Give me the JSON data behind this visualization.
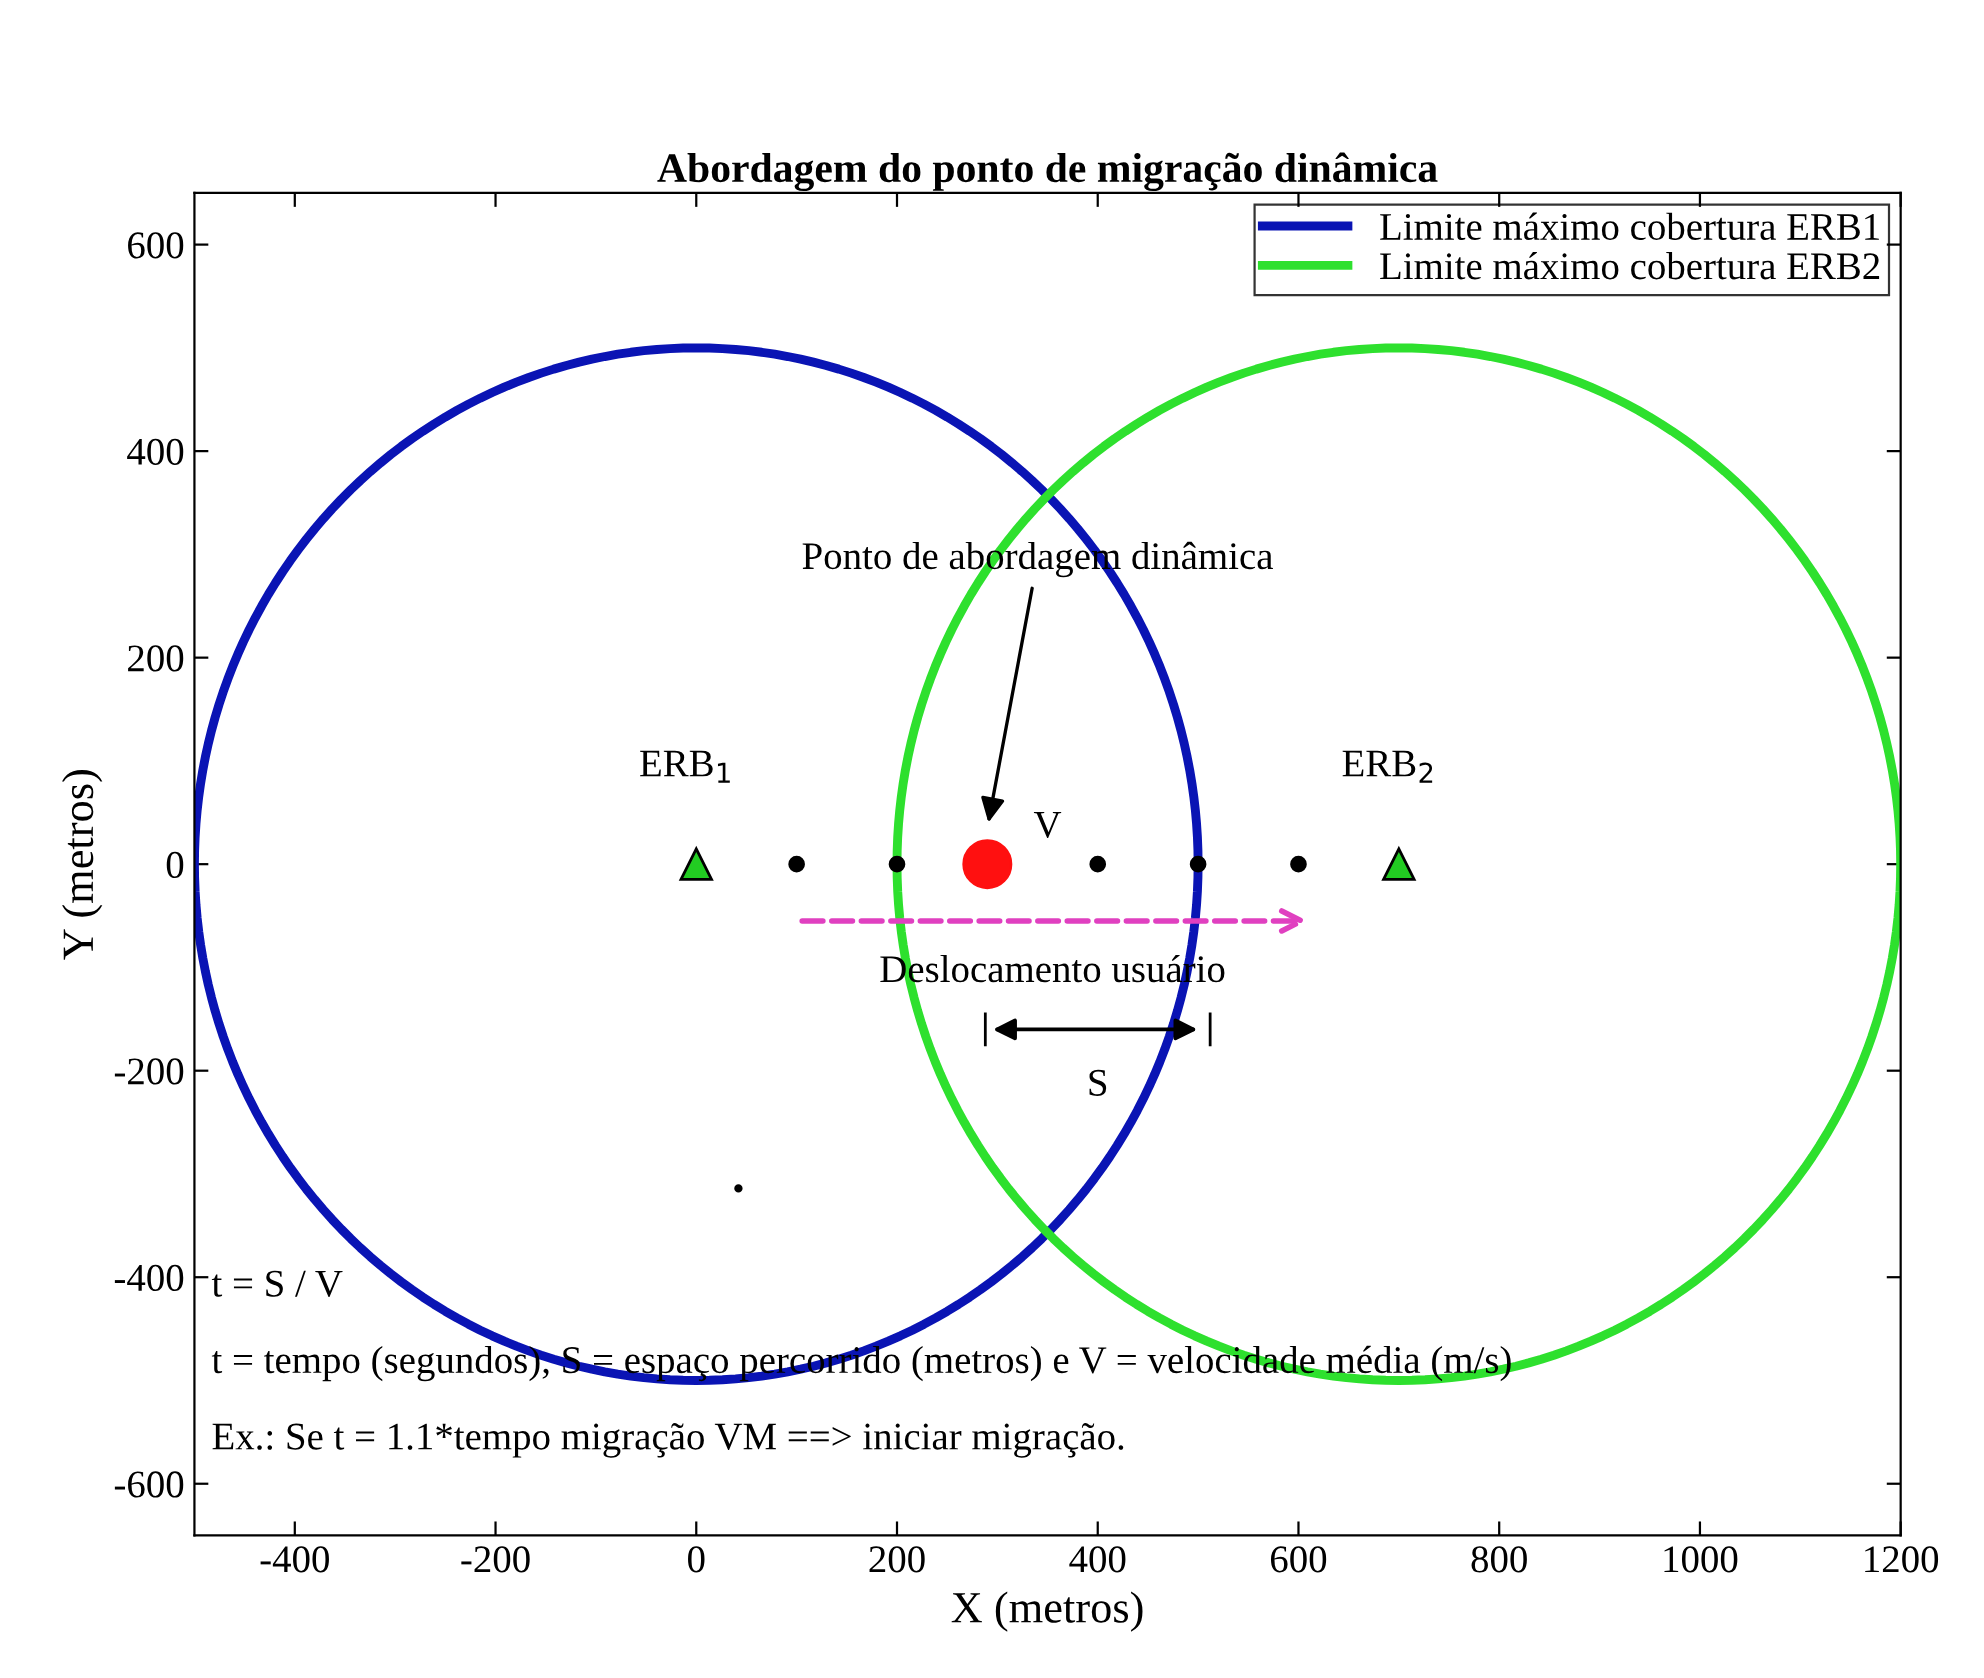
{
  "chart_data": {
    "type": "scatter",
    "title": "Abordagem do ponto de migração dinâmica",
    "xlabel": "X (metros)",
    "ylabel": "Y (metros)",
    "xlim": [
      -500,
      1200
    ],
    "ylim": [
      -650,
      650
    ],
    "xticks": [
      -400,
      -200,
      0,
      200,
      400,
      600,
      800,
      1000,
      1200
    ],
    "yticks": [
      -600,
      -400,
      -200,
      0,
      200,
      400,
      600
    ],
    "grid": false,
    "series": [
      {
        "marker": "triangle",
        "color": "#22cc22",
        "x": [
          0,
          700
        ],
        "values": [
          0,
          0
        ]
      },
      {
        "marker": "circle",
        "color": "#000000",
        "x": [
          100,
          200,
          400,
          500,
          600
        ],
        "values": [
          0,
          0,
          0,
          0,
          0
        ]
      },
      {
        "marker": "circle",
        "color": "#000000",
        "x": [
          42
        ],
        "values": [
          -314
        ]
      },
      {
        "marker": "circle",
        "color": "#ff1010",
        "x": [
          290
        ],
        "values": [
          0
        ]
      }
    ],
    "annotations": [
      "Ponto de abordagem dinâmica",
      {
        "text": "V",
        "x": 290,
        "y": 0
      },
      {
        "text": "ERB$_{1}$",
        "x": 0,
        "y": 0
      },
      {
        "text": "ERB$_{2}$",
        "x": 700,
        "y": 0
      },
      "Deslocamento usuário",
      "S",
      "t = S / V",
      "t = tempo (segundos), S = espaço percorrido (metros) e V = velocidade média (m/s)",
      "Ex.: Se t = 1.1*tempo migração VM ==> iniciar migração.",
      "Limite máximo cobertura ERB1",
      "Limite máximo cobertura ERB2"
    ]
  }
}
